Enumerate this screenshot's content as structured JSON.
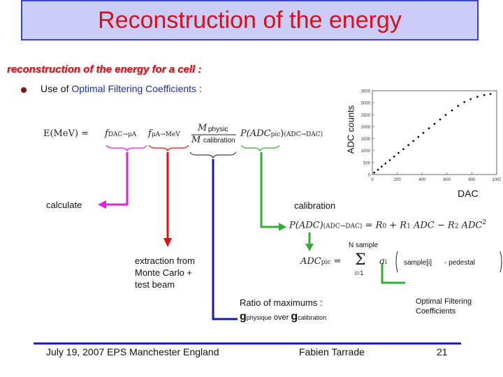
{
  "title": "Reconstruction of the energy",
  "subtitle": "reconstruction of the energy for a cell :",
  "bullet": {
    "prefix": "Use of ",
    "highlight": "Optimal Filtering Coefficients",
    "suffix": " :"
  },
  "formula1": {
    "lhs": "E(MeV) =",
    "f1": "f",
    "f1_sub": "DAC→μA",
    "f2": "f",
    "f2_sub": "μA→MeV",
    "frac_num": "M",
    "frac_num_label": "physic",
    "frac_den": "M",
    "frac_den_label": "calibration",
    "p": "P(ADC",
    "p_sub": "pic",
    "p_end": ")",
    "p_sub2": "(ADC→DAC)"
  },
  "labels": {
    "calculate": "calculate",
    "calibration": "calibration",
    "extraction": [
      "extraction from",
      "Monte Carlo +",
      "test beam"
    ],
    "ratio_line1": "Ratio of maximums :",
    "ratio_g1": "g",
    "ratio_g1_sub": "physique",
    "ratio_over": " over ",
    "ratio_g2": "g",
    "ratio_g2_sub": "calibration",
    "nsample": "N sample",
    "sample": "sample[i]",
    "pedestal": "- pedestal",
    "ofc": [
      "Optimal Filtering",
      "Coefficients"
    ]
  },
  "formula2": {
    "lhs": "P(ADC)",
    "lhs_sub": "(ADC→DAC)",
    "rhs": "= R",
    "r0": "0",
    "plus": "+ R",
    "r1": "1",
    "adc1": "ADC − R",
    "r2": "2",
    "adc2": "ADC",
    "sq": "2"
  },
  "formula3": {
    "lhs": "ADC",
    "lhs_sub": "pic",
    "eq": "=",
    "sigma": "Σ",
    "i1": "i=1",
    "a": "a",
    "a_sub": "i"
  },
  "chart_data": {
    "type": "scatter",
    "title": "",
    "xlabel": "DAC",
    "ylabel": "ADC counts",
    "xlim": [
      0,
      1000
    ],
    "ylim": [
      0,
      3500
    ],
    "x_ticks": [
      "0",
      "200",
      "400",
      "600",
      "800",
      "1000"
    ],
    "y_ticks": [
      "0",
      "500",
      "1000",
      "1500",
      "2000",
      "2500",
      "3000",
      "3500"
    ],
    "grid": false,
    "legend": "none",
    "x": [
      15,
      45,
      75,
      105,
      140,
      175,
      210,
      250,
      290,
      330,
      370,
      410,
      455,
      500,
      545,
      590,
      640,
      690,
      740,
      790,
      845,
      900,
      950
    ],
    "y": [
      80,
      200,
      330,
      460,
      600,
      750,
      900,
      1060,
      1230,
      1400,
      1570,
      1740,
      1930,
      2120,
      2300,
      2490,
      2680,
      2870,
      3030,
      3150,
      3250,
      3320,
      3360
    ]
  },
  "footer": {
    "date": "July 19, 2007 EPS Manchester England",
    "author": "Fabien Tarrade",
    "page": "21"
  },
  "colors": {
    "title_red": "#d8101a",
    "title_box": "#cbcdf8",
    "title_border": "#3c44d8",
    "magenta": "#e020e0",
    "red": "#e01010",
    "blue": "#1818b8",
    "green": "#30b030",
    "footer_line": "#1818b8"
  }
}
